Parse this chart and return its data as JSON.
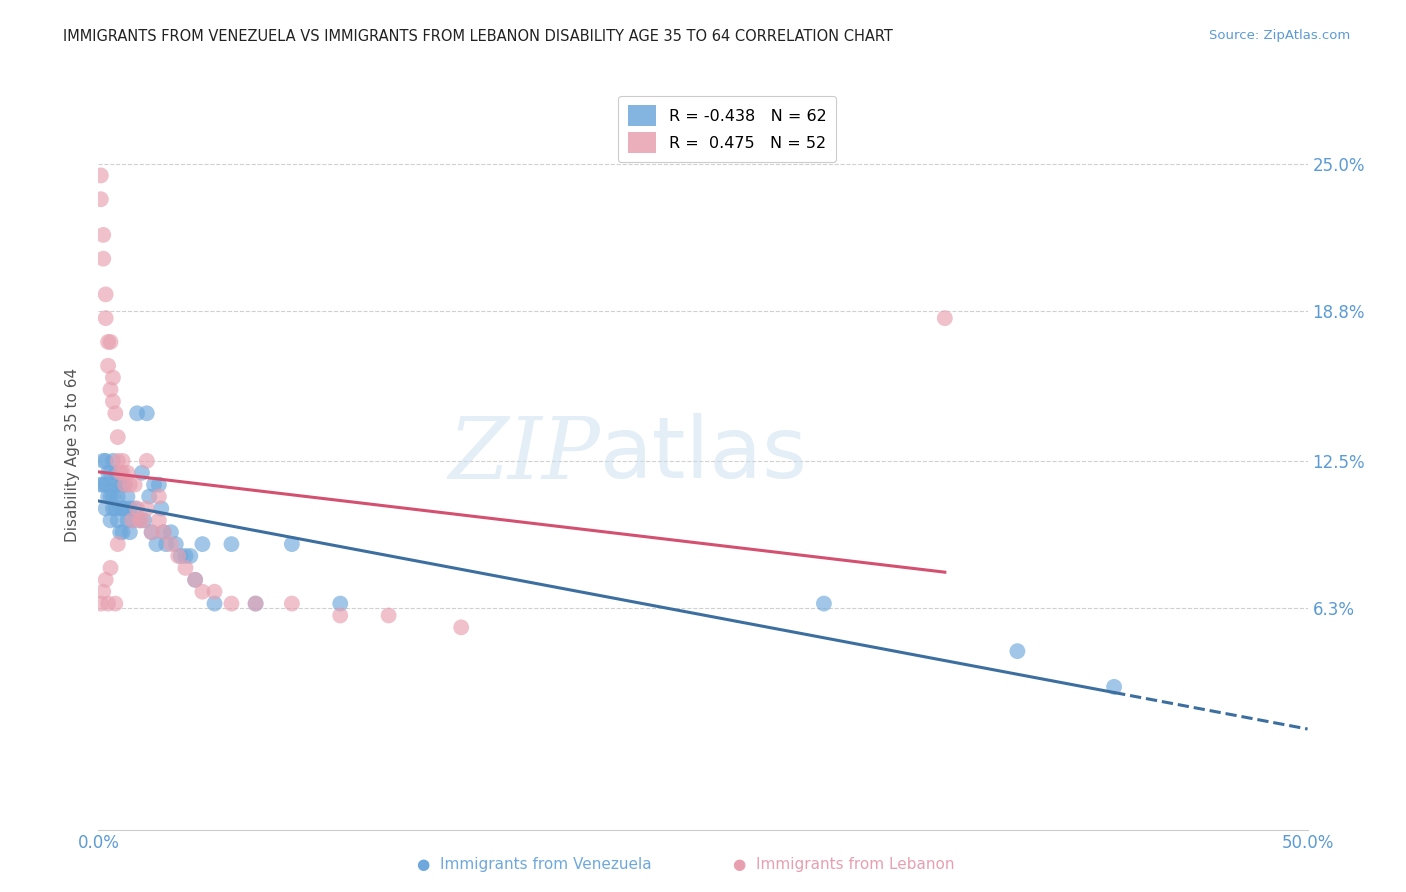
{
  "title": "IMMIGRANTS FROM VENEZUELA VS IMMIGRANTS FROM LEBANON DISABILITY AGE 35 TO 64 CORRELATION CHART",
  "source": "Source: ZipAtlas.com",
  "ylabel": "Disability Age 35 to 64",
  "ytick_labels": [
    "25.0%",
    "18.8%",
    "12.5%",
    "6.3%"
  ],
  "ytick_values": [
    0.25,
    0.188,
    0.125,
    0.063
  ],
  "xmin": 0.0,
  "xmax": 0.5,
  "ymin": -0.03,
  "ymax": 0.285,
  "legend_r_venezuela": "-0.438",
  "legend_n_venezuela": "62",
  "legend_r_lebanon": " 0.475",
  "legend_n_lebanon": "52",
  "color_venezuela": "#6fa8dc",
  "color_lebanon": "#e8a0b0",
  "trendline_color_venezuela": "#3c6fa0",
  "trendline_color_lebanon": "#d45070",
  "watermark_zip": "ZIP",
  "watermark_atlas": "atlas",
  "venezuela_x": [
    0.001,
    0.002,
    0.002,
    0.003,
    0.003,
    0.003,
    0.004,
    0.004,
    0.005,
    0.005,
    0.005,
    0.006,
    0.006,
    0.006,
    0.007,
    0.007,
    0.007,
    0.008,
    0.008,
    0.008,
    0.009,
    0.009,
    0.009,
    0.01,
    0.01,
    0.01,
    0.011,
    0.011,
    0.012,
    0.012,
    0.013,
    0.013,
    0.014,
    0.015,
    0.016,
    0.017,
    0.018,
    0.019,
    0.02,
    0.021,
    0.022,
    0.023,
    0.024,
    0.025,
    0.026,
    0.027,
    0.028,
    0.03,
    0.032,
    0.034,
    0.036,
    0.038,
    0.04,
    0.043,
    0.048,
    0.055,
    0.065,
    0.08,
    0.1,
    0.3,
    0.38,
    0.42
  ],
  "venezuela_y": [
    0.115,
    0.125,
    0.115,
    0.125,
    0.115,
    0.105,
    0.12,
    0.11,
    0.12,
    0.11,
    0.1,
    0.125,
    0.11,
    0.105,
    0.12,
    0.115,
    0.105,
    0.115,
    0.11,
    0.1,
    0.115,
    0.105,
    0.095,
    0.115,
    0.105,
    0.095,
    0.115,
    0.105,
    0.11,
    0.1,
    0.105,
    0.095,
    0.1,
    0.105,
    0.145,
    0.1,
    0.12,
    0.1,
    0.145,
    0.11,
    0.095,
    0.115,
    0.09,
    0.115,
    0.105,
    0.095,
    0.09,
    0.095,
    0.09,
    0.085,
    0.085,
    0.085,
    0.075,
    0.09,
    0.065,
    0.09,
    0.065,
    0.09,
    0.065,
    0.065,
    0.045,
    0.03
  ],
  "lebanon_x": [
    0.001,
    0.001,
    0.002,
    0.002,
    0.003,
    0.003,
    0.004,
    0.004,
    0.005,
    0.005,
    0.006,
    0.006,
    0.007,
    0.008,
    0.008,
    0.009,
    0.01,
    0.01,
    0.011,
    0.012,
    0.013,
    0.014,
    0.015,
    0.016,
    0.017,
    0.018,
    0.02,
    0.022,
    0.025,
    0.027,
    0.03,
    0.033,
    0.036,
    0.04,
    0.043,
    0.048,
    0.055,
    0.065,
    0.08,
    0.1,
    0.12,
    0.15,
    0.02,
    0.025,
    0.008,
    0.005,
    0.003,
    0.002,
    0.001,
    0.004,
    0.007,
    0.35
  ],
  "lebanon_y": [
    0.245,
    0.235,
    0.22,
    0.21,
    0.195,
    0.185,
    0.175,
    0.165,
    0.175,
    0.155,
    0.16,
    0.15,
    0.145,
    0.125,
    0.135,
    0.12,
    0.125,
    0.12,
    0.115,
    0.12,
    0.115,
    0.1,
    0.115,
    0.105,
    0.1,
    0.1,
    0.105,
    0.095,
    0.1,
    0.095,
    0.09,
    0.085,
    0.08,
    0.075,
    0.07,
    0.07,
    0.065,
    0.065,
    0.065,
    0.06,
    0.06,
    0.055,
    0.125,
    0.11,
    0.09,
    0.08,
    0.075,
    0.07,
    0.065,
    0.065,
    0.065,
    0.185
  ]
}
